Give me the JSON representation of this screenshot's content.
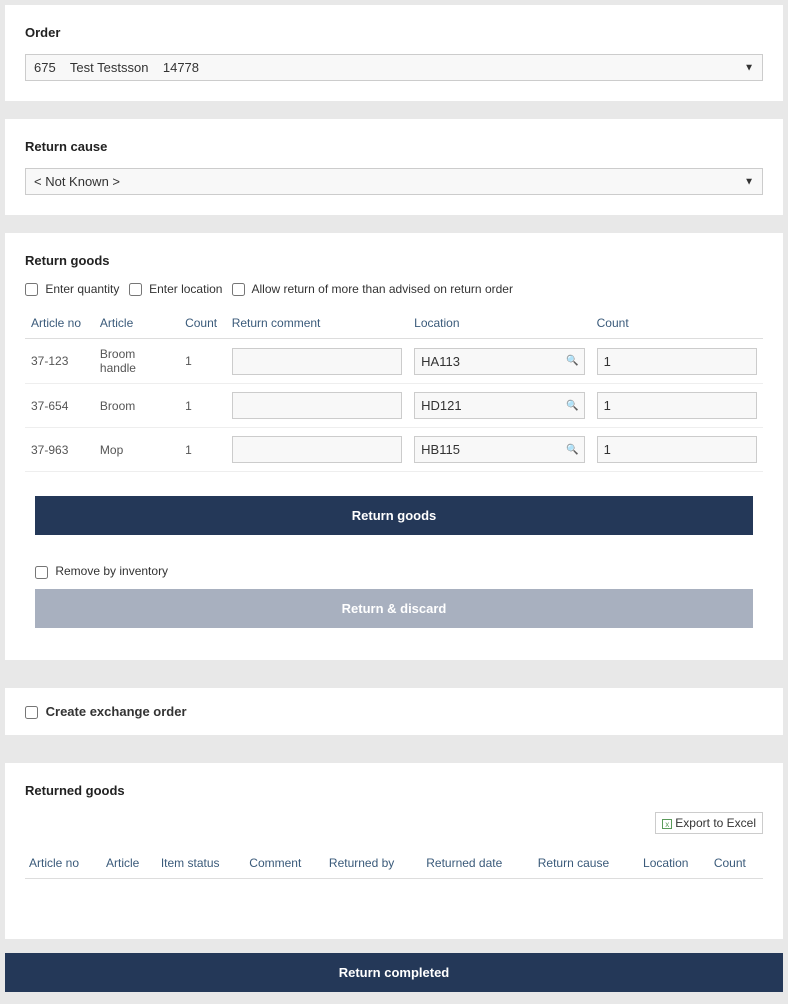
{
  "order": {
    "label": "Order",
    "selected": "675    Test Testsson    14778"
  },
  "return_cause": {
    "label": "Return cause",
    "selected": "< Not Known >"
  },
  "return_goods": {
    "title": "Return goods",
    "checkboxes": {
      "enter_quantity": "Enter quantity",
      "enter_location": "Enter location",
      "allow_more": "Allow return of more than advised on return order"
    },
    "columns": {
      "article_no": "Article no",
      "article": "Article",
      "count_from": "Count",
      "return_comment": "Return comment",
      "location": "Location",
      "count_to": "Count"
    },
    "rows": [
      {
        "article_no": "37-123",
        "article": "Broom handle",
        "count_from": "1",
        "comment": "",
        "location": "HA113",
        "count_to": "1"
      },
      {
        "article_no": "37-654",
        "article": "Broom",
        "count_from": "1",
        "comment": "",
        "location": "HD121",
        "count_to": "1"
      },
      {
        "article_no": "37-963",
        "article": "Mop",
        "count_from": "1",
        "comment": "",
        "location": "HB115",
        "count_to": "1"
      }
    ],
    "btn_return": "Return goods",
    "remove_by_inventory": "Remove by inventory",
    "btn_discard": "Return & discard"
  },
  "exchange": {
    "label": "Create exchange order"
  },
  "returned": {
    "title": "Returned goods",
    "export": "Export to Excel",
    "columns": {
      "article_no": "Article no",
      "article": "Article",
      "item_status": "Item status",
      "comment": "Comment",
      "returned_by": "Returned by",
      "returned_date": "Returned date",
      "return_cause": "Return cause",
      "location": "Location",
      "count": "Count"
    }
  },
  "btn_complete": "Return completed",
  "colors": {
    "primary": "#243858",
    "disabled": "#a8b0bf",
    "header_link": "#3a5a7a",
    "panel_bg": "#ffffff",
    "page_bg": "#e8e8e8",
    "border": "#cccccc"
  }
}
